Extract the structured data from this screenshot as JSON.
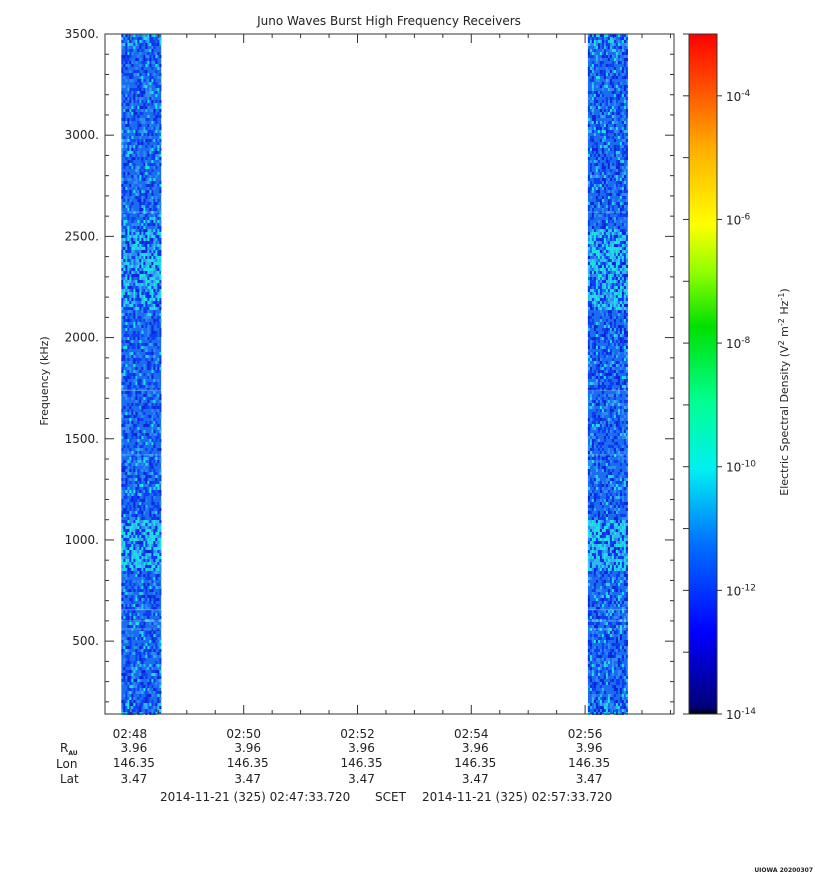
{
  "chart_data": {
    "type": "heatmap",
    "title": "Juno Waves Burst High Frequency Receivers",
    "ylabel": "Frequency (kHz)",
    "ylim": [
      140,
      3500
    ],
    "y_ticks": [
      "3500.",
      "3000.",
      "2500.",
      "2000.",
      "1500.",
      "1000.",
      "500."
    ],
    "y_tick_values": [
      3500,
      3000,
      2500,
      2000,
      1500,
      1000,
      500
    ],
    "x_ticks": [
      "02:48",
      "02:50",
      "02:52",
      "02:54",
      "02:56"
    ],
    "x_tick_minutes": [
      48,
      50,
      52,
      54,
      56
    ],
    "xlim_minutes": [
      47.5625,
      57.5625
    ],
    "data_intervals_minutes": [
      [
        47.85,
        48.55
      ],
      [
        56.05,
        56.75
      ]
    ],
    "colorbar": {
      "label": "Electric Spectral Density (V² m⁻² Hz⁻¹)",
      "label_main": "Electric Spectral Density (V",
      "label_sup1": "2",
      "label_mid": " m",
      "label_sup2": "-2",
      "label_mid2": " Hz",
      "label_sup3": "-1",
      "label_end": ")",
      "scale": "log",
      "range_exponents": [
        -14,
        -3
      ],
      "ticks": [
        {
          "base": "10",
          "exp": "-4",
          "value": -4
        },
        {
          "base": "10",
          "exp": "-6",
          "value": -6
        },
        {
          "base": "10",
          "exp": "-8",
          "value": -8
        },
        {
          "base": "10",
          "exp": "-10",
          "value": -10
        },
        {
          "base": "10",
          "exp": "-12",
          "value": -12
        },
        {
          "base": "10",
          "exp": "-14",
          "value": -14
        }
      ]
    },
    "ephemeris": {
      "row_labels": {
        "r": "R",
        "r_sub": "AU",
        "lon": "Lon",
        "lat": "Lat"
      },
      "r": [
        "3.96",
        "3.96",
        "3.96",
        "3.96",
        "3.96"
      ],
      "lon": [
        "146.35",
        "146.35",
        "146.35",
        "146.35",
        "146.35"
      ],
      "lat": [
        "3.47",
        "3.47",
        "3.47",
        "3.47",
        "3.47"
      ]
    },
    "time_range": {
      "start": "2014-11-21 (325) 02:47:33.720",
      "label": "SCET",
      "end": "2014-11-21 (325) 02:57:33.720"
    }
  },
  "footer": {
    "stamp": "UIOWA 20200307"
  }
}
